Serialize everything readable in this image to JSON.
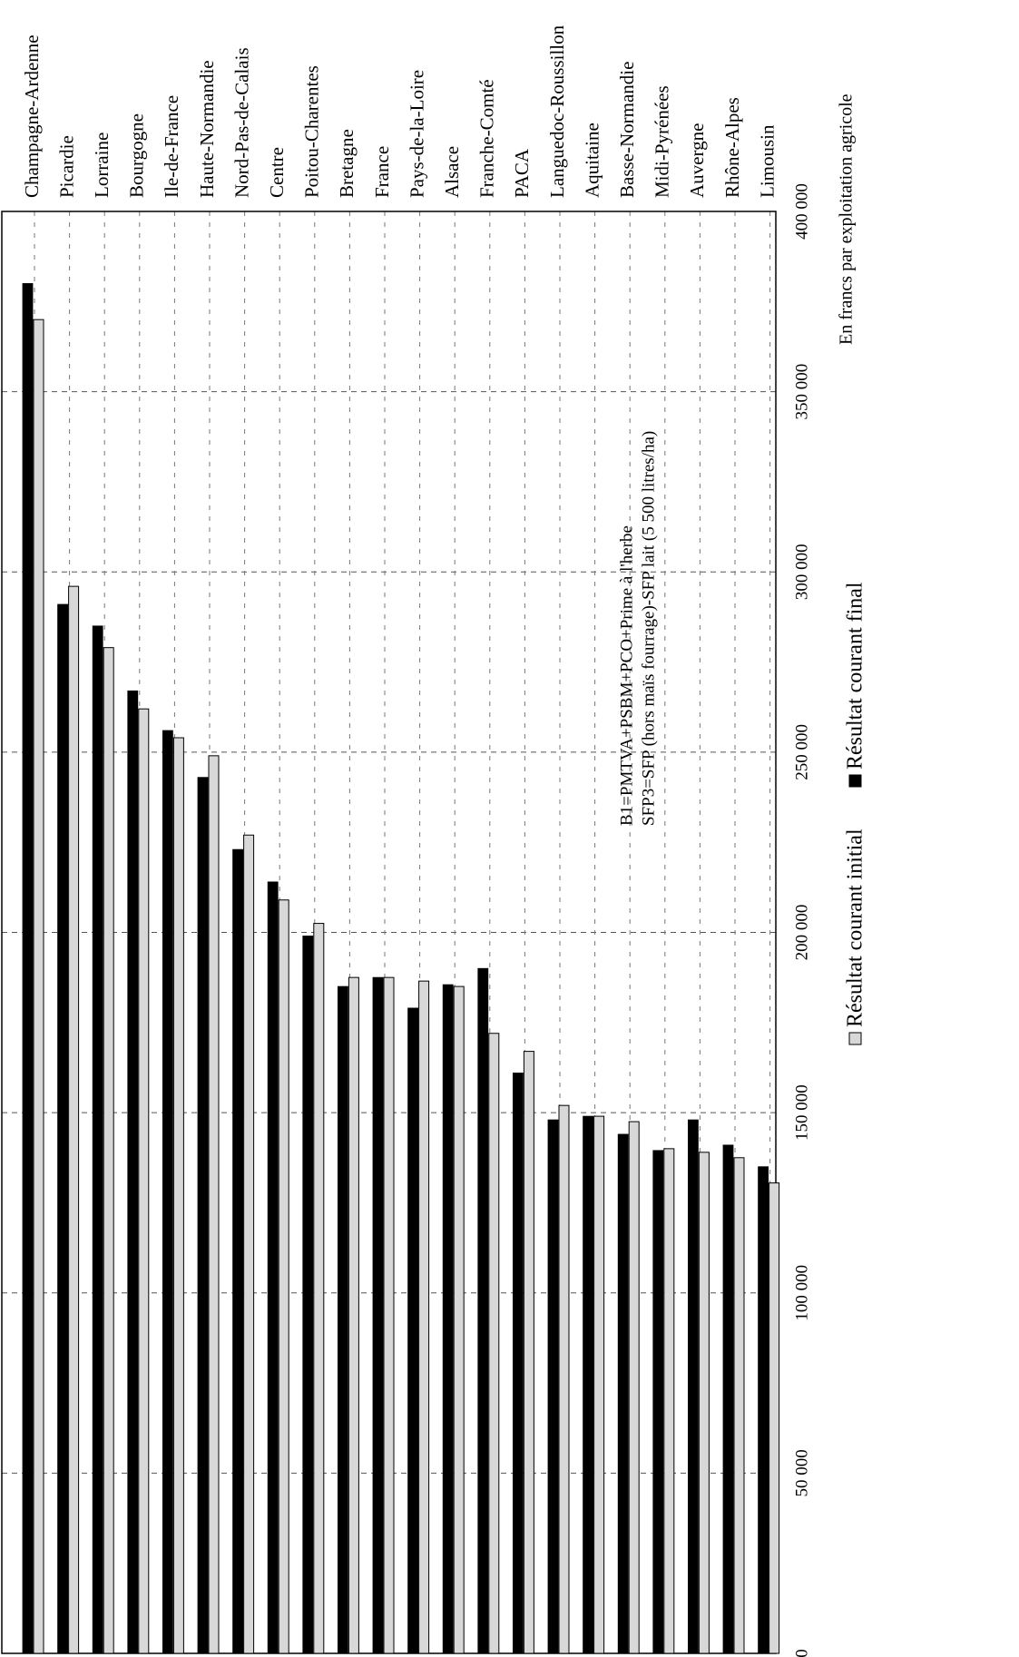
{
  "chart_data": {
    "type": "bar",
    "orientation": "horizontal",
    "categories": [
      "Champagne-Ardenne",
      "Picardie",
      "Lorraine",
      "Bourgogne",
      "Ile-de-France",
      "Haute-Normandie",
      "Nord-Pas-de-Calais",
      "Centre",
      "Poitou-Charentes",
      "Bretagne",
      "France",
      "Pays-de-la-Loire",
      "Alsace",
      "Franche-Comté",
      "PACA",
      "Languedoc-Roussillon",
      "Aquitaine",
      "Basse-Normandie",
      "Midi-Pyrénées",
      "Auvergne",
      "Rhône-Alpes",
      "Limousin"
    ],
    "series": [
      {
        "name": "Résultat courant final",
        "color": "#000000",
        "values": [
          380000,
          291000,
          285000,
          267000,
          256000,
          243000,
          223000,
          214000,
          199000,
          185000,
          187500,
          179000,
          185500,
          190000,
          161000,
          148000,
          149000,
          144000,
          139500,
          148000,
          141000,
          135000
        ]
      },
      {
        "name": "Résultat courant initial",
        "color": "#d8d8d8",
        "values": [
          370000,
          296000,
          279000,
          262000,
          254000,
          249000,
          227000,
          209000,
          202500,
          187500,
          187500,
          186500,
          185000,
          172000,
          167000,
          152000,
          149000,
          147500,
          140000,
          139000,
          137500,
          130500
        ]
      }
    ],
    "xlim": [
      0,
      400000
    ],
    "ticks": [
      "0",
      "50 000",
      "100 000",
      "150 000",
      "200 000",
      "250 000",
      "300 000",
      "350 000",
      "400 000"
    ],
    "tick_values": [
      0,
      50000,
      100000,
      150000,
      200000,
      250000,
      300000,
      350000,
      400000
    ],
    "unit_label": "En francs par exploitation agricole",
    "legend": {
      "items": [
        "Résultat courant initial",
        "Résultat courant final"
      ],
      "placement": "bottom"
    },
    "annotations": [
      "B1=PMTVA+PSBM+PCO+Prime à l'herbe",
      "SFP3=SFP (hors maïs fourrage)-SFP lait (5 500 litres/ha)"
    ],
    "grid": true,
    "rotated": true
  }
}
